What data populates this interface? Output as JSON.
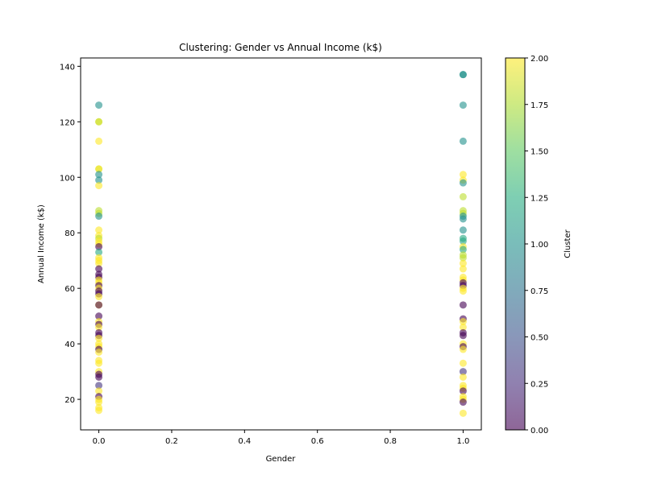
{
  "chart_data": {
    "type": "scatter",
    "title": "Clustering: Gender vs Annual Income (k$)",
    "xlabel": "Gender",
    "ylabel": "Annual Income (k$)",
    "xlim": [
      -0.05,
      1.05
    ],
    "ylim": [
      9,
      143
    ],
    "xticks": [
      0.0,
      0.2,
      0.4,
      0.6,
      0.8,
      1.0
    ],
    "xtick_labels": [
      "0.0",
      "0.2",
      "0.4",
      "0.6",
      "0.8",
      "1.0"
    ],
    "yticks": [
      20,
      40,
      60,
      80,
      100,
      120,
      140
    ],
    "ytick_labels": [
      "20",
      "40",
      "60",
      "80",
      "100",
      "120",
      "140"
    ],
    "colorbar": {
      "label": "Cluster",
      "range": [
        0.0,
        2.0
      ],
      "ticks": [
        0.0,
        0.25,
        0.5,
        0.75,
        1.0,
        1.25,
        1.5,
        1.75,
        2.0
      ],
      "tick_labels": [
        "0.00",
        "0.25",
        "0.50",
        "0.75",
        "1.00",
        "1.25",
        "1.50",
        "1.75",
        "2.00"
      ],
      "colormap": "viridis"
    },
    "points": [
      {
        "x": 0,
        "y": 126,
        "c": 1
      },
      {
        "x": 0,
        "y": 120,
        "c": 2
      },
      {
        "x": 0,
        "y": 120,
        "c": 1.8
      },
      {
        "x": 0,
        "y": 113,
        "c": 2
      },
      {
        "x": 0,
        "y": 103,
        "c": 1.8
      },
      {
        "x": 0,
        "y": 103,
        "c": 2
      },
      {
        "x": 0,
        "y": 101,
        "c": 1
      },
      {
        "x": 0,
        "y": 99,
        "c": 1
      },
      {
        "x": 0,
        "y": 97,
        "c": 2
      },
      {
        "x": 0,
        "y": 88,
        "c": 1.8
      },
      {
        "x": 0,
        "y": 87,
        "c": 1.8
      },
      {
        "x": 0,
        "y": 86,
        "c": 1
      },
      {
        "x": 0,
        "y": 81,
        "c": 2
      },
      {
        "x": 0,
        "y": 79,
        "c": 2
      },
      {
        "x": 0,
        "y": 78,
        "c": 1.8
      },
      {
        "x": 0,
        "y": 77,
        "c": 2
      },
      {
        "x": 0,
        "y": 76,
        "c": 2
      },
      {
        "x": 0,
        "y": 75,
        "c": 0
      },
      {
        "x": 0,
        "y": 73,
        "c": 1.2
      },
      {
        "x": 0,
        "y": 71,
        "c": 2
      },
      {
        "x": 0,
        "y": 70,
        "c": 2
      },
      {
        "x": 0,
        "y": 69,
        "c": 2
      },
      {
        "x": 0,
        "y": 67,
        "c": 0
      },
      {
        "x": 0,
        "y": 65,
        "c": 0
      },
      {
        "x": 0,
        "y": 64,
        "c": 0
      },
      {
        "x": 0,
        "y": 63,
        "c": 2
      },
      {
        "x": 0,
        "y": 62,
        "c": 2
      },
      {
        "x": 0,
        "y": 61,
        "c": 0
      },
      {
        "x": 0,
        "y": 60,
        "c": 2
      },
      {
        "x": 0,
        "y": 59,
        "c": 0
      },
      {
        "x": 0,
        "y": 58,
        "c": 0
      },
      {
        "x": 0,
        "y": 57,
        "c": 2
      },
      {
        "x": 0,
        "y": 54,
        "c": 2
      },
      {
        "x": 0,
        "y": 54,
        "c": 0
      },
      {
        "x": 0,
        "y": 50,
        "c": 0
      },
      {
        "x": 0,
        "y": 48,
        "c": 2
      },
      {
        "x": 0,
        "y": 47,
        "c": 0
      },
      {
        "x": 0,
        "y": 46,
        "c": 2
      },
      {
        "x": 0,
        "y": 44,
        "c": 0
      },
      {
        "x": 0,
        "y": 43,
        "c": 0
      },
      {
        "x": 0,
        "y": 42,
        "c": 2
      },
      {
        "x": 0,
        "y": 40,
        "c": 2
      },
      {
        "x": 0,
        "y": 39,
        "c": 2
      },
      {
        "x": 0,
        "y": 38,
        "c": 0
      },
      {
        "x": 0,
        "y": 37,
        "c": 2
      },
      {
        "x": 0,
        "y": 34,
        "c": 2
      },
      {
        "x": 0,
        "y": 33,
        "c": 2
      },
      {
        "x": 0,
        "y": 30,
        "c": 2
      },
      {
        "x": 0,
        "y": 29,
        "c": 0
      },
      {
        "x": 0,
        "y": 28,
        "c": 0
      },
      {
        "x": 0,
        "y": 25,
        "c": 0.3
      },
      {
        "x": 0,
        "y": 23,
        "c": 2
      },
      {
        "x": 0,
        "y": 21,
        "c": 0
      },
      {
        "x": 0,
        "y": 20,
        "c": 2
      },
      {
        "x": 0,
        "y": 19,
        "c": 2
      },
      {
        "x": 0,
        "y": 17,
        "c": 2
      },
      {
        "x": 0,
        "y": 16,
        "c": 2
      },
      {
        "x": 1,
        "y": 137,
        "c": 1
      },
      {
        "x": 1,
        "y": 137,
        "c": 1
      },
      {
        "x": 1,
        "y": 126,
        "c": 1
      },
      {
        "x": 1,
        "y": 113,
        "c": 1
      },
      {
        "x": 1,
        "y": 101,
        "c": 2
      },
      {
        "x": 1,
        "y": 99,
        "c": 2
      },
      {
        "x": 1,
        "y": 98,
        "c": 1
      },
      {
        "x": 1,
        "y": 93,
        "c": 1.8
      },
      {
        "x": 1,
        "y": 88,
        "c": 1.8
      },
      {
        "x": 1,
        "y": 87,
        "c": 1.8
      },
      {
        "x": 1,
        "y": 86,
        "c": 1
      },
      {
        "x": 1,
        "y": 85,
        "c": 1
      },
      {
        "x": 1,
        "y": 81,
        "c": 1
      },
      {
        "x": 1,
        "y": 78,
        "c": 1.2
      },
      {
        "x": 1,
        "y": 77,
        "c": 1.2
      },
      {
        "x": 1,
        "y": 75,
        "c": 2
      },
      {
        "x": 1,
        "y": 74,
        "c": 1.2
      },
      {
        "x": 1,
        "y": 72,
        "c": 1.8
      },
      {
        "x": 1,
        "y": 71,
        "c": 1.8
      },
      {
        "x": 1,
        "y": 69,
        "c": 2
      },
      {
        "x": 1,
        "y": 67,
        "c": 2
      },
      {
        "x": 1,
        "y": 64,
        "c": 2
      },
      {
        "x": 1,
        "y": 63,
        "c": 2
      },
      {
        "x": 1,
        "y": 62,
        "c": 0
      },
      {
        "x": 1,
        "y": 61,
        "c": 0
      },
      {
        "x": 1,
        "y": 60,
        "c": 2
      },
      {
        "x": 1,
        "y": 59,
        "c": 2
      },
      {
        "x": 1,
        "y": 54,
        "c": 0
      },
      {
        "x": 1,
        "y": 49,
        "c": 0
      },
      {
        "x": 1,
        "y": 48,
        "c": 2
      },
      {
        "x": 1,
        "y": 46,
        "c": 2
      },
      {
        "x": 1,
        "y": 44,
        "c": 0
      },
      {
        "x": 1,
        "y": 43,
        "c": 0
      },
      {
        "x": 1,
        "y": 40,
        "c": 2
      },
      {
        "x": 1,
        "y": 39,
        "c": 0
      },
      {
        "x": 1,
        "y": 38,
        "c": 2
      },
      {
        "x": 1,
        "y": 33,
        "c": 2
      },
      {
        "x": 1,
        "y": 30,
        "c": 0.3
      },
      {
        "x": 1,
        "y": 28,
        "c": 2
      },
      {
        "x": 1,
        "y": 25,
        "c": 2
      },
      {
        "x": 1,
        "y": 24,
        "c": 2
      },
      {
        "x": 1,
        "y": 23,
        "c": 0
      },
      {
        "x": 1,
        "y": 21,
        "c": 2
      },
      {
        "x": 1,
        "y": 20,
        "c": 2
      },
      {
        "x": 1,
        "y": 19,
        "c": 0
      },
      {
        "x": 1,
        "y": 15,
        "c": 2
      }
    ]
  }
}
